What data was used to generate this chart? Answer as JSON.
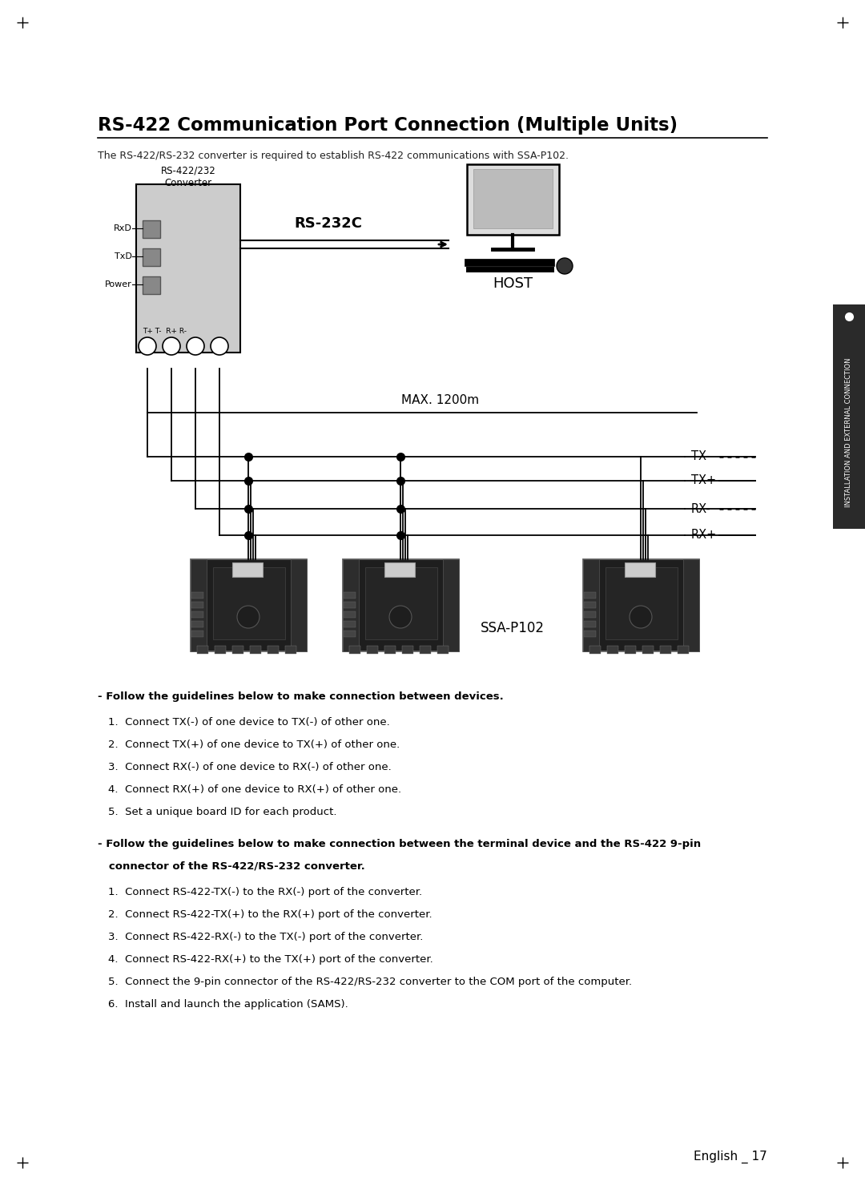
{
  "title": "RS-422 Communication Port Connection (Multiple Units)",
  "subtitle": "The RS-422/RS-232 converter is required to establish RS-422 communications with SSA-P102.",
  "bg_color": "#ffffff",
  "text_color": "#000000",
  "section1_header": "- Follow the guidelines below to make connection between devices.",
  "section1_items": [
    "1.  Connect TX(-) of one device to TX(-) of other one.",
    "2.  Connect TX(+) of one device to TX(+) of other one.",
    "3.  Connect RX(-) of one device to RX(-) of other one.",
    "4.  Connect RX(+) of one device to RX(+) of other one.",
    "5.  Set a unique board ID for each product."
  ],
  "section2_header_bold": "- Follow the guidelines below to make connection between the terminal device and the RS-422 9-pin",
  "section2_header_bold2": "   connector of the RS-422/RS-232 converter.",
  "section2_items": [
    "1.  Connect RS-422-TX(-) to the RX(-) port of the converter.",
    "2.  Connect RS-422-TX(+) to the RX(+) port of the converter.",
    "3.  Connect RS-422-RX(-) to the TX(-) port of the converter.",
    "4.  Connect RS-422-RX(+) to the TX(+) port of the converter.",
    "5.  Connect the 9-pin connector of the RS-422/RS-232 converter to the COM port of the computer.",
    "6.  Install and launch the application (SAMS)."
  ],
  "footer": "English _ 17",
  "converter_label1": "RS-422/232",
  "converter_label2": "Converter",
  "rxd_label": "RxD",
  "txd_label": "TxD",
  "power_label": "Power",
  "terminals_label": "T+ T-  R+ R-",
  "rs232c_label": "RS-232C",
  "host_label": "HOST",
  "max_label": "MAX. 1200m",
  "tx_minus_label": "TX-",
  "tx_plus_label": "TX+",
  "rx_minus_label": "RX-",
  "rx_plus_label": "RX+",
  "ssa_label": "SSA-P102",
  "tab_text": "INSTALLATION AND EXTERNAL CONNECTION",
  "tab_color": "#2a2a2a",
  "tab_dot_color": "#ffffff"
}
